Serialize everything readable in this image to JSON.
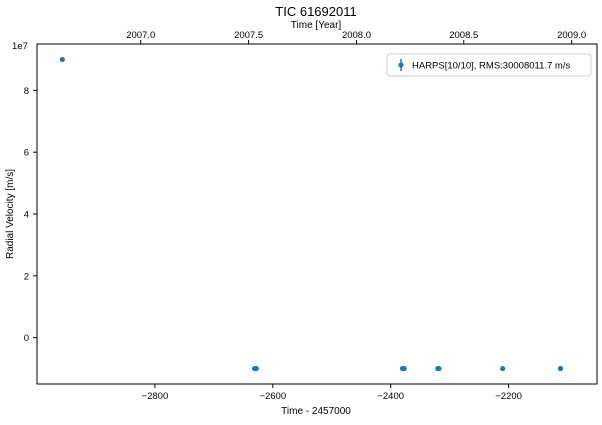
{
  "chart_data": {
    "type": "scatter",
    "title": "TIC 61692011",
    "xlabel": "Time - 2457000",
    "ylabel": "Radial Velocity [m/s]",
    "top_xlabel": "Time [Year]",
    "y_offset_label": "1e7",
    "xlim": [
      -3000,
      -2050
    ],
    "ylim": [
      -1.5,
      9.5
    ],
    "y_unit_scale": 10000000,
    "x_ticks": [
      -2800,
      -2600,
      -2400,
      -2200
    ],
    "x_tick_labels": [
      "−2800",
      "−2600",
      "−2400",
      "−2200"
    ],
    "y_ticks": [
      0,
      2,
      4,
      6,
      8
    ],
    "y_tick_labels": [
      "0",
      "2",
      "4",
      "6",
      "8"
    ],
    "top_ticks": [
      -2824,
      -2641,
      -2458,
      -2276,
      -2093
    ],
    "top_tick_labels": [
      "2007.0",
      "2007.5",
      "2008.0",
      "2008.5",
      "2009.0"
    ],
    "series": [
      {
        "name": "HARPS[10/10], RMS:30008011.7 m/s",
        "color": "#1f77b4",
        "x": [
          -2957,
          -2631,
          -2628,
          -2380,
          -2377,
          -2320,
          -2318,
          -2210,
          -2112,
          -2112
        ],
        "y": [
          9.0,
          -1.0,
          -1.0,
          -1.0,
          -1.0,
          -1.0,
          -1.0,
          -1.0,
          -1.0,
          -1.0
        ]
      }
    ],
    "legend_position": "top-right",
    "grid": false
  }
}
